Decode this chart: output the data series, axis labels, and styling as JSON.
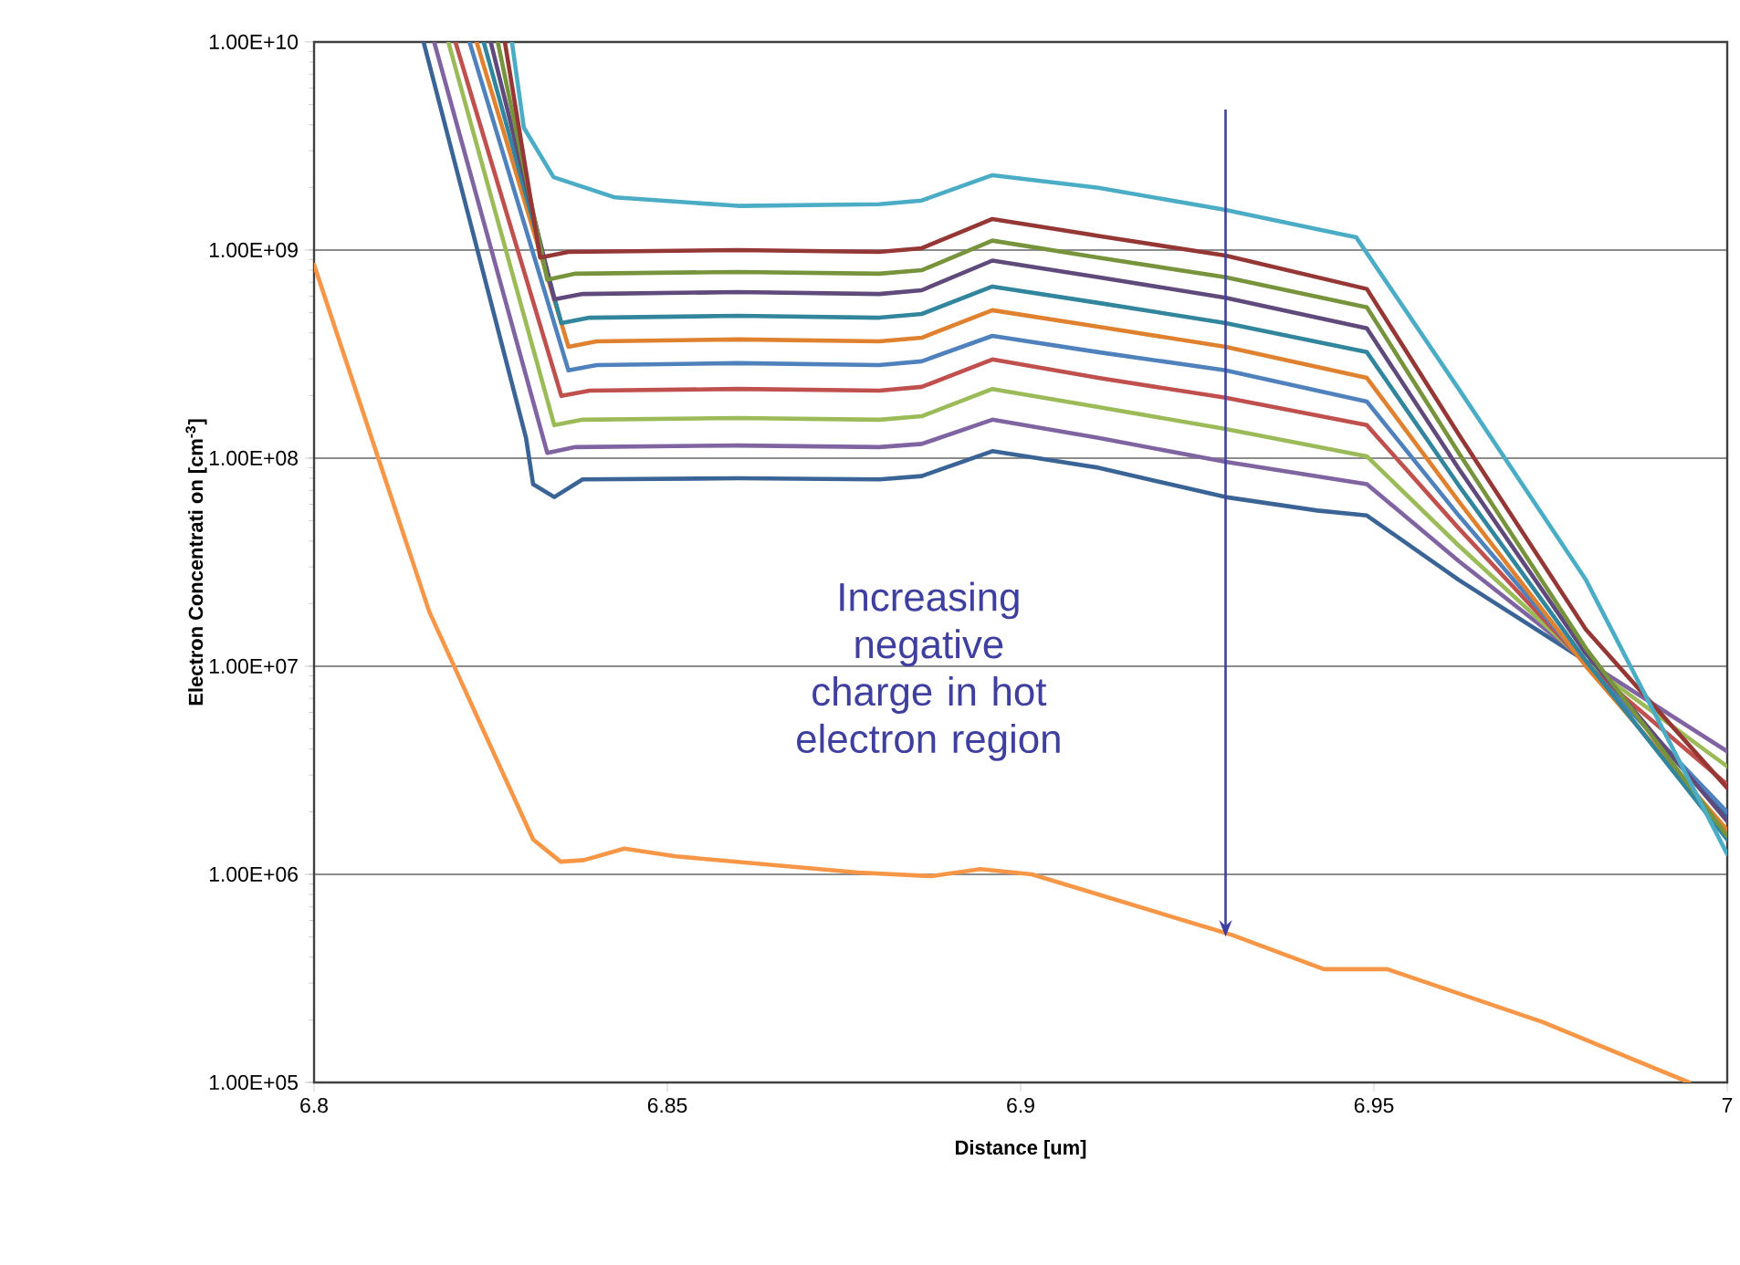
{
  "chart_data": {
    "type": "line",
    "xlabel": "Distance [um]",
    "ylabel": "Electron Concentrati on [cm$^{-3}$]",
    "xlim": [
      6.8,
      7
    ],
    "ylim": [
      100000.0,
      10000000000.0
    ],
    "log": "y",
    "grid": "y",
    "xticks": [
      6.8,
      6.85,
      6.9,
      6.95,
      7
    ],
    "yticks": [
      {
        "value": 100000.0,
        "label": "1.00E+05"
      },
      {
        "value": 1000000.0,
        "label": "1.00E+06"
      },
      {
        "value": 10000000.0,
        "label": "1.00E+07"
      },
      {
        "value": 100000000.0,
        "label": "1.00E+08"
      },
      {
        "value": 1000000000.0,
        "label": "1.00E+09"
      },
      {
        "value": 10000000000.0,
        "label": "1.00E+10"
      }
    ],
    "annotations": [
      "Increasing negative charge in hot electron region"
    ],
    "series": [
      {
        "color": "#3a6496",
        "x": [
          6.8155,
          6.83,
          6.831,
          6.834,
          6.838,
          6.86,
          6.88,
          6.886,
          6.896,
          6.911,
          6.929,
          6.942,
          6.949,
          6.962,
          6.98,
          7.0
        ],
        "values": [
          10000000000.0,
          125000000.0,
          75000000.0,
          65000000.0,
          79000000.0,
          80000000.0,
          79000000.0,
          82000000.0,
          108000000.0,
          90000000.0,
          65000000.0,
          56000000.0,
          53000000.0,
          26000000.0,
          10600000.0,
          1870000.0
        ]
      },
      {
        "color": "#8064a2",
        "x": [
          6.817,
          6.833,
          6.837,
          6.86,
          6.88,
          6.886,
          6.896,
          6.911,
          6.929,
          6.949,
          6.962,
          6.98,
          7.0
        ],
        "values": [
          10000000000.0,
          106000000.0,
          113000000.0,
          115000000.0,
          113000000.0,
          117000000.0,
          153000000.0,
          125000000.0,
          96000000.0,
          75000000.0,
          32000000.0,
          10600000.0,
          3900000.0
        ]
      },
      {
        "color": "#9bbb59",
        "x": [
          6.819,
          6.834,
          6.838,
          6.86,
          6.88,
          6.886,
          6.896,
          6.911,
          6.929,
          6.949,
          6.962,
          6.98,
          7.0
        ],
        "values": [
          10000000000.0,
          144000000.0,
          153000000.0,
          156000000.0,
          153000000.0,
          159000000.0,
          215000000.0,
          176000000.0,
          138000000.0,
          102000000.0,
          38000000.0,
          10400000.0,
          3300000.0
        ]
      },
      {
        "color": "#c0504d",
        "x": [
          6.82,
          6.835,
          6.839,
          6.86,
          6.88,
          6.886,
          6.896,
          6.911,
          6.929,
          6.949,
          6.962,
          6.98,
          7.0
        ],
        "values": [
          10000000000.0,
          199000000.0,
          211000000.0,
          215000000.0,
          211000000.0,
          220000000.0,
          298000000.0,
          243000000.0,
          195000000.0,
          144000000.0,
          46000000.0,
          10200000.0,
          2700000.0
        ]
      },
      {
        "color": "#4f81bd",
        "x": [
          6.822,
          6.836,
          6.84,
          6.86,
          6.88,
          6.886,
          6.896,
          6.911,
          6.929,
          6.949,
          6.962,
          6.98,
          7.0
        ],
        "values": [
          10000000000.0,
          264000000.0,
          280000000.0,
          286000000.0,
          280000000.0,
          292000000.0,
          387000000.0,
          323000000.0,
          264000000.0,
          187000000.0,
          53000000.0,
          10200000.0,
          1990000.0
        ]
      },
      {
        "color": "#e0812f",
        "x": [
          6.823,
          6.836,
          6.84,
          6.86,
          6.88,
          6.886,
          6.896,
          6.911,
          6.929,
          6.949,
          6.962,
          6.98,
          7.0
        ],
        "values": [
          10000000000.0,
          343000000.0,
          364000000.0,
          372000000.0,
          364000000.0,
          379000000.0,
          514000000.0,
          428000000.0,
          343000000.0,
          243000000.0,
          62000000.0,
          10000000.0,
          1630000.0
        ]
      },
      {
        "color": "#31859c",
        "x": [
          6.824,
          6.835,
          6.839,
          6.86,
          6.88,
          6.886,
          6.896,
          6.911,
          6.929,
          6.949,
          6.962,
          6.98,
          7.0
        ],
        "values": [
          10000000000.0,
          446000000.0,
          473000000.0,
          483000000.0,
          473000000.0,
          493000000.0,
          668000000.0,
          557000000.0,
          446000000.0,
          323000000.0,
          74000000.0,
          10600000.0,
          1470000.0
        ]
      },
      {
        "color": "#604a7b",
        "x": [
          6.825,
          6.834,
          6.838,
          6.86,
          6.88,
          6.886,
          6.896,
          6.911,
          6.929,
          6.949,
          6.962,
          6.98,
          7.0
        ],
        "values": [
          10000000000.0,
          580000000.0,
          615000000.0,
          628000000.0,
          615000000.0,
          641000000.0,
          890000000.0,
          740000000.0,
          590000000.0,
          420000000.0,
          89000000.0,
          11500000.0,
          1800000.0
        ]
      },
      {
        "color": "#77933c",
        "x": [
          6.826,
          6.833,
          6.837,
          6.86,
          6.88,
          6.886,
          6.896,
          6.911,
          6.929,
          6.949,
          6.962,
          6.98,
          7.0
        ],
        "values": [
          10000000000.0,
          720000000.0,
          770000000.0,
          785000000.0,
          770000000.0,
          800000000.0,
          1110000000.0,
          920000000.0,
          740000000.0,
          530000000.0,
          106000000.0,
          12200000.0,
          1530000.0
        ]
      },
      {
        "color": "#953735",
        "x": [
          6.827,
          6.832,
          6.836,
          6.86,
          6.88,
          6.886,
          6.896,
          6.911,
          6.929,
          6.949,
          6.962,
          6.98,
          7.0
        ],
        "values": [
          10000000000.0,
          920000000.0,
          980000000.0,
          1000000000.0,
          980000000.0,
          1020000000.0,
          1410000000.0,
          1170000000.0,
          940000000.0,
          650000000.0,
          130000000.0,
          15000000.0,
          2600000.0
        ]
      },
      {
        "color": "#4bacc6",
        "x": [
          6.828,
          6.8297,
          6.8339,
          6.8426,
          6.86,
          6.88,
          6.886,
          6.896,
          6.911,
          6.929,
          6.9475,
          6.962,
          6.98,
          7.0
        ],
        "values": [
          10000000000.0,
          3870000000.0,
          2240000000.0,
          1790000000.0,
          1630000000.0,
          1660000000.0,
          1730000000.0,
          2290000000.0,
          1990000000.0,
          1560000000.0,
          1150000000.0,
          215000000.0,
          26000000.0,
          1250000.0
        ]
      },
      {
        "color": "#f79646",
        "x": [
          6.8,
          6.8163,
          6.831,
          6.8349,
          6.8382,
          6.8439,
          6.8512,
          6.877,
          6.8873,
          6.8943,
          6.9016,
          6.93,
          6.9429,
          6.9519,
          6.9739,
          6.9946
        ],
        "values": [
          850000000.0,
          18300000.0,
          1470000.0,
          1150000.0,
          1170000.0,
          1330000.0,
          1220000.0,
          1020000.0,
          980000.0,
          1060000.0,
          1000000.0,
          510000.0,
          350000.0,
          350000.0,
          195000.0,
          100000.0
        ]
      }
    ]
  }
}
